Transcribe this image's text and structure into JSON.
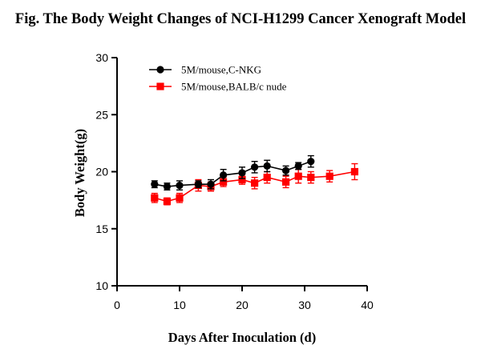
{
  "title": "Fig. The Body Weight Changes of NCI-H1299 Cancer Xenograft Model",
  "chart_data": {
    "type": "line",
    "title": "Fig. The Body Weight Changes of NCI-H1299 Cancer Xenograft Model",
    "xlabel": "Days After Inoculation (d)",
    "ylabel": "Body Weight(g)",
    "xlim": [
      0,
      40
    ],
    "ylim": [
      10,
      30
    ],
    "xticks": [
      0,
      10,
      20,
      30,
      40
    ],
    "yticks": [
      10,
      15,
      20,
      25,
      30
    ],
    "grid": false,
    "legend_position": "top-left",
    "series": [
      {
        "name": "5M/mouse,C-NKG",
        "color": "#000000",
        "marker": "circle",
        "x": [
          6,
          8,
          10,
          13,
          15,
          17,
          20,
          22,
          24,
          27,
          29,
          31
        ],
        "y": [
          18.9,
          18.7,
          18.8,
          18.9,
          18.9,
          19.7,
          19.9,
          20.4,
          20.5,
          20.1,
          20.5,
          20.9
        ],
        "error": [
          0.3,
          0.3,
          0.4,
          0.3,
          0.4,
          0.5,
          0.5,
          0.5,
          0.5,
          0.4,
          0.3,
          0.5
        ]
      },
      {
        "name": "5M/mouse,BALB/c nude",
        "color": "#ff0000",
        "marker": "square",
        "x": [
          6,
          8,
          10,
          13,
          15,
          17,
          20,
          22,
          24,
          27,
          29,
          31,
          34,
          38
        ],
        "y": [
          17.7,
          17.4,
          17.7,
          18.8,
          18.7,
          19.1,
          19.3,
          19.0,
          19.5,
          19.1,
          19.6,
          19.5,
          19.6,
          20.0
        ],
        "error": [
          0.4,
          0.3,
          0.4,
          0.5,
          0.4,
          0.4,
          0.4,
          0.5,
          0.5,
          0.5,
          0.6,
          0.5,
          0.5,
          0.7
        ]
      }
    ]
  }
}
